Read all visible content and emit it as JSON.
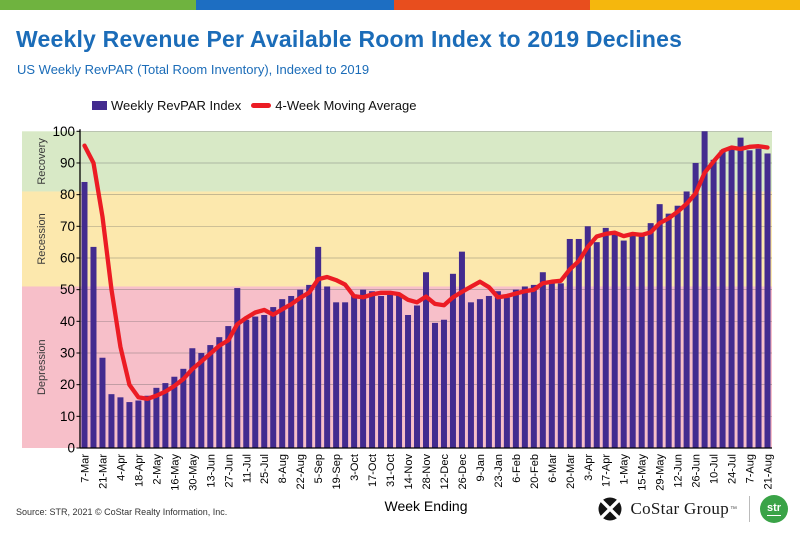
{
  "top_bar": {
    "segments": [
      {
        "name": "green",
        "color": "#6fb33f"
      },
      {
        "name": "blue",
        "color": "#1d6ec2"
      },
      {
        "name": "orange",
        "color": "#e84e1e"
      },
      {
        "name": "yellow",
        "color": "#f5b70d"
      }
    ]
  },
  "header": {
    "title": "Weekly Revenue Per Available Room Index to 2019 Declines",
    "subtitle": "US Weekly RevPAR (Total Room Inventory), Indexed to 2019",
    "title_color": "#1b6cb8"
  },
  "legend": [
    {
      "label": "Weekly RevPAR Index",
      "color": "#432b8f"
    },
    {
      "label": "4-Week Moving Average",
      "color": "#ec1c24"
    }
  ],
  "chart_data": {
    "type": "bar",
    "title": "Weekly Revenue Per Available Room Index to 2019 Declines",
    "xlabel": "Week Ending",
    "ylabel": "",
    "ylim": [
      0,
      100
    ],
    "ytick_interval": 10,
    "grid": true,
    "x_tick_label_every": 2,
    "categories": [
      "7-Mar",
      "14-Mar",
      "21-Mar",
      "28-Mar",
      "4-Apr",
      "11-Apr",
      "18-Apr",
      "25-Apr",
      "2-May",
      "9-May",
      "16-May",
      "23-May",
      "30-May",
      "6-Jun",
      "13-Jun",
      "20-Jun",
      "27-Jun",
      "4-Jul",
      "11-Jul",
      "18-Jul",
      "25-Jul",
      "1-Aug",
      "8-Aug",
      "15-Aug",
      "22-Aug",
      "29-Aug",
      "5-Sep",
      "12-Sep",
      "19-Sep",
      "26-Sep",
      "3-Oct",
      "10-Oct",
      "17-Oct",
      "24-Oct",
      "31-Oct",
      "7-Nov",
      "14-Nov",
      "21-Nov",
      "28-Nov",
      "5-Dec",
      "12-Dec",
      "19-Dec",
      "26-Dec",
      "2-Jan",
      "9-Jan",
      "16-Jan",
      "23-Jan",
      "30-Jan",
      "6-Feb",
      "13-Feb",
      "20-Feb",
      "27-Feb",
      "6-Mar",
      "13-Mar",
      "20-Mar",
      "27-Mar",
      "3-Apr",
      "10-Apr",
      "17-Apr",
      "24-Apr",
      "1-May",
      "8-May",
      "15-May",
      "22-May",
      "29-May",
      "5-Jun",
      "12-Jun",
      "19-Jun",
      "26-Jun",
      "3-Jul",
      "10-Jul",
      "17-Jul",
      "24-Jul",
      "31-Jul",
      "7-Aug",
      "14-Aug",
      "21-Aug"
    ],
    "series": [
      {
        "name": "Weekly RevPAR Index",
        "type": "bar",
        "color": "#432b8f",
        "values": [
          84,
          63.5,
          28.5,
          17,
          16,
          14.5,
          15,
          16.5,
          19,
          20.5,
          22.5,
          25,
          31.5,
          30,
          32.5,
          35,
          38.5,
          50.5,
          40.5,
          41.5,
          42,
          44.5,
          47,
          48,
          50,
          51.5,
          63.5,
          51,
          46,
          46,
          48.5,
          50,
          49.5,
          48,
          48.5,
          48.5,
          42,
          45,
          55.5,
          39.5,
          40.5,
          55,
          62,
          46,
          47,
          48,
          49.5,
          47.5,
          50,
          51,
          51.5,
          55.5,
          52,
          52,
          66,
          66,
          70,
          65,
          69.5,
          67.5,
          65.5,
          68,
          68,
          71,
          77,
          74,
          76.5,
          81,
          90,
          100,
          91,
          94,
          94.5,
          98,
          94,
          94.5,
          93
        ]
      },
      {
        "name": "4-Week Moving Average",
        "type": "line",
        "color": "#ec1c24",
        "values": [
          95.5,
          90,
          73,
          50,
          32,
          20,
          16,
          15.5,
          16.5,
          17.8,
          19.6,
          21.8,
          24.9,
          27.3,
          29.8,
          32.3,
          34,
          39.1,
          41.1,
          42.8,
          43.6,
          42.1,
          43.8,
          45.4,
          47.4,
          49.1,
          53.3,
          54,
          53,
          51.6,
          47.9,
          47.6,
          48.5,
          49,
          49,
          48.6,
          46.8,
          46,
          47.8,
          45.5,
          45.1,
          47.6,
          49.3,
          50.9,
          52.5,
          50.8,
          47.6,
          48,
          48.8,
          49.5,
          50,
          52,
          52.5,
          52.8,
          56.4,
          59,
          63.5,
          66.8,
          67.6,
          68,
          66.9,
          67.6,
          67.3,
          68.1,
          71,
          72.5,
          74.6,
          77.1,
          80.4,
          86.9,
          90.5,
          93.8,
          94.9,
          94.4,
          95.1,
          95.3,
          94.9
        ]
      }
    ],
    "zones": [
      {
        "label": "Recovery",
        "from": 81,
        "to": 100,
        "color": "#d8e9c6"
      },
      {
        "label": "Recession",
        "from": 51,
        "to": 81,
        "color": "#fce8ad"
      },
      {
        "label": "Depression",
        "from": 0,
        "to": 51,
        "color": "#f7bfc9"
      }
    ]
  },
  "footer": {
    "source": "Source: STR, 2021 © CoStar Realty Information, Inc.",
    "brand": "CoStar Group",
    "brand_tm": "TM",
    "str_badge": "str",
    "str_color": "#3aa347"
  }
}
